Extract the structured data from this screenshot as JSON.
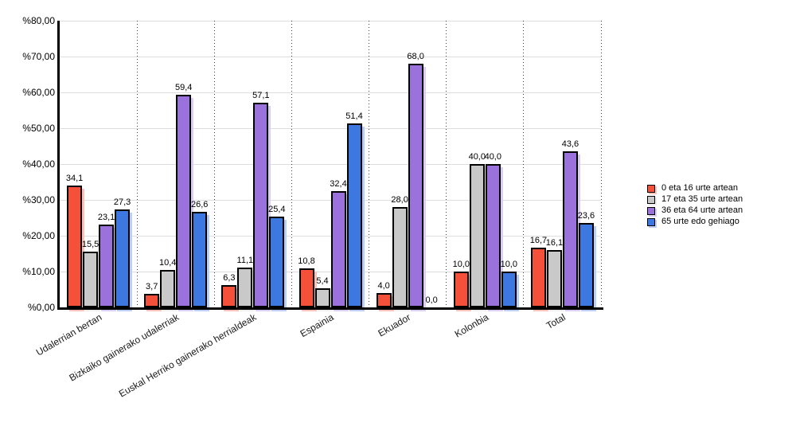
{
  "chart_data": {
    "type": "bar",
    "title": "",
    "xlabel": "",
    "ylabel": "",
    "categories": [
      "Udalerrian bertan",
      "Bizkaiko gainerako udalerriak",
      "Euskal Herriko gainerako herrialdeak",
      "Espainia",
      "Ekuador",
      "Kolonbia",
      "Total"
    ],
    "series": [
      {
        "name": "0 eta 16 urte artean",
        "color": "#f4503a",
        "shadow_color": "#fbc2ba",
        "values": [
          34.1,
          3.7,
          6.3,
          10.8,
          4.0,
          10.0,
          16.7
        ]
      },
      {
        "name": "17 eta 35 urte artean",
        "color": "#c9c9c9",
        "shadow_color": "#ededed",
        "values": [
          15.5,
          10.4,
          11.1,
          5.4,
          28.0,
          40.0,
          16.1
        ]
      },
      {
        "name": "36 eta 64 urte artean",
        "color": "#9b72dc",
        "shadow_color": "#dccef3",
        "values": [
          23.1,
          59.4,
          57.1,
          32.4,
          68.0,
          40.0,
          43.6
        ]
      },
      {
        "name": "65 urte edo gehiago",
        "color": "#3d77e0",
        "shadow_color": "#bbcff4",
        "values": [
          27.3,
          26.6,
          25.4,
          51.4,
          0.0,
          10.0,
          23.6
        ]
      }
    ],
    "ylim": [
      0,
      80
    ],
    "y_tick_labels": [
      "%0,00",
      "%10,00",
      "%20,00",
      "%30,00",
      "%40,00",
      "%50,00",
      "%60,00",
      "%70,00",
      "%80,00"
    ],
    "value_label_format": "one decimal, comma separator",
    "grid": "horizontal solid light-gray lines, dotted vertical category separators",
    "legend_position": "right",
    "axis_color": "#000000",
    "gridline_color": "#dedede",
    "separator_color": "#3c3c3c"
  }
}
